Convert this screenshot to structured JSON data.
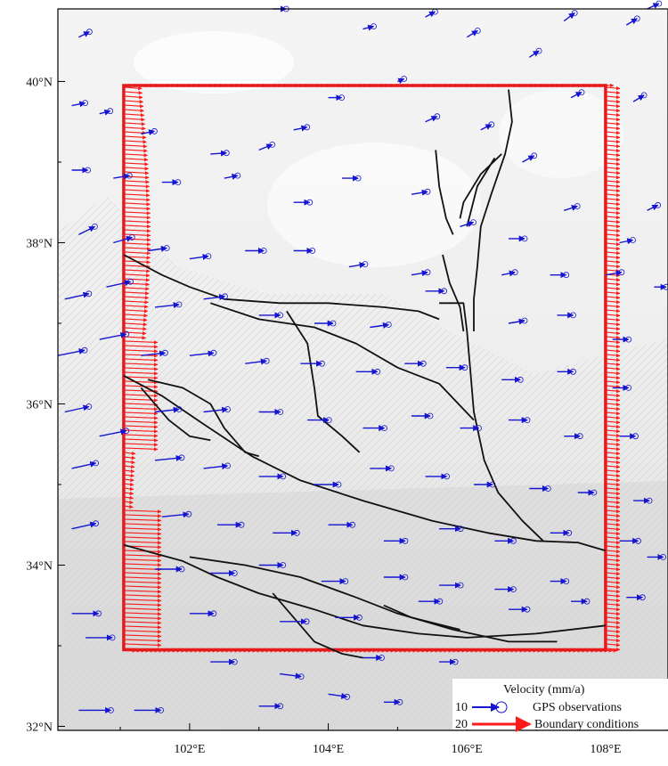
{
  "map": {
    "lon_range": [
      100.1,
      108.9
    ],
    "lat_range": [
      31.95,
      40.9
    ],
    "background": "grayscale shaded relief",
    "latitude_labels": [
      {
        "lat": 40,
        "text": "40°N"
      },
      {
        "lat": 38,
        "text": "38°N"
      },
      {
        "lat": 36,
        "text": "36°N"
      },
      {
        "lat": 34,
        "text": "34°N"
      },
      {
        "lat": 32,
        "text": "32°N"
      }
    ],
    "longitude_labels": [
      {
        "lon": 102,
        "text": "102°E"
      },
      {
        "lon": 104,
        "text": "104°E"
      },
      {
        "lon": 106,
        "text": "106°E"
      },
      {
        "lon": 108,
        "text": "108°E"
      }
    ]
  },
  "model_boundary": {
    "color": "#e41a1c",
    "corners": [
      [
        101.05,
        39.95
      ],
      [
        108.0,
        39.95
      ],
      [
        108.0,
        32.95
      ],
      [
        101.05,
        32.95
      ]
    ]
  },
  "legend": {
    "title": "Velocity (mm/a)",
    "gps_value": "10",
    "gps_label": "GPS observations",
    "gps_color": "#1414d2",
    "boundary_value": "20",
    "boundary_label": "Boundary conditions",
    "boundary_color": "#ff1a1a"
  },
  "faults": [
    [
      [
        101.05,
        37.85
      ],
      [
        101.6,
        37.6
      ],
      [
        102.0,
        37.45
      ],
      [
        102.5,
        37.3
      ],
      [
        103.3,
        37.25
      ],
      [
        104.0,
        37.25
      ],
      [
        104.8,
        37.2
      ],
      [
        105.3,
        37.15
      ],
      [
        105.6,
        37.05
      ]
    ],
    [
      [
        102.3,
        37.25
      ],
      [
        103.0,
        37.05
      ],
      [
        103.8,
        36.95
      ],
      [
        104.4,
        36.75
      ],
      [
        105.0,
        36.45
      ],
      [
        105.6,
        36.25
      ],
      [
        106.1,
        35.8
      ]
    ],
    [
      [
        103.4,
        37.15
      ],
      [
        103.7,
        36.75
      ],
      [
        103.8,
        36.2
      ],
      [
        103.85,
        35.85
      ],
      [
        104.2,
        35.6
      ],
      [
        104.45,
        35.4
      ]
    ],
    [
      [
        101.05,
        36.35
      ],
      [
        101.6,
        36.1
      ],
      [
        102.2,
        35.75
      ],
      [
        102.9,
        35.35
      ],
      [
        103.6,
        35.05
      ],
      [
        104.5,
        34.8
      ],
      [
        105.5,
        34.55
      ],
      [
        106.3,
        34.4
      ],
      [
        107.0,
        34.3
      ],
      [
        107.6,
        34.28
      ],
      [
        108.0,
        34.18
      ]
    ],
    [
      [
        101.4,
        36.3
      ],
      [
        101.9,
        36.2
      ],
      [
        102.3,
        36.0
      ],
      [
        102.5,
        35.7
      ],
      [
        102.8,
        35.4
      ],
      [
        103.0,
        35.35
      ]
    ],
    [
      [
        101.3,
        36.2
      ],
      [
        101.7,
        35.8
      ],
      [
        102.0,
        35.6
      ],
      [
        102.3,
        35.55
      ]
    ],
    [
      [
        105.6,
        37.25
      ],
      [
        105.95,
        37.25
      ],
      [
        106.0,
        36.9
      ],
      [
        106.05,
        36.4
      ],
      [
        106.1,
        35.9
      ],
      [
        106.25,
        35.3
      ],
      [
        106.45,
        34.9
      ],
      [
        106.8,
        34.55
      ],
      [
        107.1,
        34.3
      ]
    ],
    [
      [
        106.6,
        39.9
      ],
      [
        106.65,
        39.5
      ],
      [
        106.55,
        39.1
      ],
      [
        106.35,
        38.6
      ],
      [
        106.2,
        38.2
      ],
      [
        106.15,
        37.7
      ],
      [
        106.1,
        37.3
      ],
      [
        106.1,
        36.9
      ]
    ],
    [
      [
        106.5,
        39.1
      ],
      [
        106.2,
        38.85
      ],
      [
        105.95,
        38.5
      ],
      [
        105.9,
        38.3
      ]
    ],
    [
      [
        106.4,
        39.05
      ],
      [
        106.15,
        38.7
      ],
      [
        106.0,
        38.2
      ]
    ],
    [
      [
        105.55,
        39.15
      ],
      [
        105.6,
        38.7
      ],
      [
        105.7,
        38.3
      ],
      [
        105.8,
        38.1
      ]
    ],
    [
      [
        105.65,
        37.85
      ],
      [
        105.75,
        37.5
      ],
      [
        105.9,
        37.2
      ],
      [
        105.95,
        36.9
      ]
    ],
    [
      [
        101.05,
        34.25
      ],
      [
        101.9,
        34.05
      ],
      [
        102.4,
        33.85
      ],
      [
        103.0,
        33.65
      ],
      [
        103.8,
        33.45
      ],
      [
        104.5,
        33.25
      ],
      [
        105.3,
        33.15
      ],
      [
        106.0,
        33.1
      ],
      [
        107.0,
        33.15
      ],
      [
        108.0,
        33.25
      ]
    ],
    [
      [
        102.0,
        34.1
      ],
      [
        102.8,
        34.0
      ],
      [
        103.6,
        33.85
      ],
      [
        104.4,
        33.6
      ],
      [
        105.0,
        33.4
      ],
      [
        105.8,
        33.2
      ],
      [
        106.6,
        33.05
      ],
      [
        107.3,
        33.05
      ]
    ],
    [
      [
        103.2,
        33.65
      ],
      [
        103.5,
        33.35
      ],
      [
        103.8,
        33.05
      ],
      [
        104.2,
        32.9
      ],
      [
        104.5,
        32.85
      ]
    ],
    [
      [
        104.8,
        33.5
      ],
      [
        105.2,
        33.35
      ],
      [
        105.9,
        33.2
      ]
    ]
  ],
  "gps_vectors": [
    [
      100.4,
      40.55,
      0.2,
      0.1
    ],
    [
      101.2,
      40.95,
      0.25,
      0.05
    ],
    [
      103.2,
      40.9,
      0.25,
      0.0
    ],
    [
      104.5,
      40.65,
      0.2,
      0.05
    ],
    [
      105.4,
      40.8,
      0.18,
      0.1
    ],
    [
      106.0,
      40.55,
      0.2,
      0.12
    ],
    [
      106.9,
      40.3,
      0.18,
      0.12
    ],
    [
      107.4,
      40.75,
      0.2,
      0.15
    ],
    [
      108.3,
      40.7,
      0.2,
      0.12
    ],
    [
      108.6,
      40.9,
      0.22,
      0.1
    ],
    [
      105.0,
      40.0,
      0.12,
      0.05
    ],
    [
      100.3,
      39.7,
      0.25,
      0.05
    ],
    [
      100.7,
      39.6,
      0.2,
      0.05
    ],
    [
      101.3,
      39.35,
      0.25,
      0.05
    ],
    [
      102.3,
      39.1,
      0.3,
      0.02
    ],
    [
      103.0,
      39.15,
      0.25,
      0.1
    ],
    [
      103.5,
      39.4,
      0.25,
      0.05
    ],
    [
      104.0,
      39.8,
      0.25,
      0.0
    ],
    [
      105.4,
      39.5,
      0.22,
      0.1
    ],
    [
      106.2,
      39.4,
      0.2,
      0.1
    ],
    [
      106.8,
      39.0,
      0.22,
      0.12
    ],
    [
      107.5,
      39.8,
      0.2,
      0.1
    ],
    [
      108.4,
      39.75,
      0.2,
      0.12
    ],
    [
      108.6,
      38.4,
      0.2,
      0.1
    ],
    [
      100.3,
      38.9,
      0.3,
      0.0
    ],
    [
      100.9,
      38.8,
      0.3,
      0.05
    ],
    [
      101.6,
      38.75,
      0.3,
      0.0
    ],
    [
      102.5,
      38.8,
      0.25,
      0.05
    ],
    [
      103.5,
      38.5,
      0.3,
      0.0
    ],
    [
      104.2,
      38.8,
      0.3,
      0.0
    ],
    [
      105.2,
      38.6,
      0.3,
      0.05
    ],
    [
      105.9,
      38.2,
      0.25,
      0.08
    ],
    [
      106.6,
      38.05,
      0.3,
      0.0
    ],
    [
      107.4,
      38.4,
      0.25,
      0.08
    ],
    [
      108.2,
      38.0,
      0.25,
      0.05
    ],
    [
      100.4,
      38.1,
      0.3,
      0.15
    ],
    [
      100.9,
      38.0,
      0.35,
      0.1
    ],
    [
      101.4,
      37.9,
      0.35,
      0.05
    ],
    [
      102.0,
      37.8,
      0.35,
      0.05
    ],
    [
      102.8,
      37.9,
      0.35,
      0.0
    ],
    [
      103.5,
      37.9,
      0.35,
      0.0
    ],
    [
      104.3,
      37.7,
      0.3,
      0.05
    ],
    [
      105.2,
      37.6,
      0.3,
      0.05
    ],
    [
      106.5,
      37.6,
      0.25,
      0.05
    ],
    [
      107.2,
      37.6,
      0.3,
      0.0
    ],
    [
      108.0,
      37.6,
      0.3,
      0.05
    ],
    [
      108.7,
      37.45,
      0.3,
      0.0
    ],
    [
      100.2,
      37.3,
      0.45,
      0.1
    ],
    [
      100.8,
      37.45,
      0.45,
      0.1
    ],
    [
      101.5,
      37.2,
      0.45,
      0.05
    ],
    [
      102.2,
      37.3,
      0.4,
      0.05
    ],
    [
      103.0,
      37.1,
      0.4,
      0.0
    ],
    [
      103.8,
      37.0,
      0.35,
      0.0
    ],
    [
      104.6,
      36.95,
      0.35,
      0.05
    ],
    [
      105.4,
      37.4,
      0.35,
      0.0
    ],
    [
      106.6,
      37.0,
      0.3,
      0.05
    ],
    [
      107.3,
      37.1,
      0.3,
      0.0
    ],
    [
      108.1,
      36.8,
      0.3,
      0.0
    ],
    [
      100.1,
      36.6,
      0.5,
      0.1
    ],
    [
      100.7,
      36.8,
      0.5,
      0.1
    ],
    [
      101.3,
      36.6,
      0.45,
      0.05
    ],
    [
      102.0,
      36.6,
      0.45,
      0.05
    ],
    [
      102.8,
      36.5,
      0.4,
      0.05
    ],
    [
      103.6,
      36.5,
      0.4,
      0.0
    ],
    [
      104.4,
      36.4,
      0.4,
      0.0
    ],
    [
      105.1,
      36.5,
      0.35,
      0.0
    ],
    [
      105.7,
      36.45,
      0.35,
      0.0
    ],
    [
      106.5,
      36.3,
      0.35,
      0.0
    ],
    [
      107.3,
      36.4,
      0.3,
      0.0
    ],
    [
      108.1,
      36.2,
      0.3,
      0.0
    ],
    [
      100.2,
      35.9,
      0.45,
      0.1
    ],
    [
      100.7,
      35.6,
      0.5,
      0.1
    ],
    [
      101.5,
      35.9,
      0.45,
      0.05
    ],
    [
      102.2,
      35.9,
      0.45,
      0.05
    ],
    [
      103.0,
      35.9,
      0.4,
      0.0
    ],
    [
      103.7,
      35.8,
      0.4,
      0.0
    ],
    [
      104.5,
      35.7,
      0.4,
      0.0
    ],
    [
      105.2,
      35.85,
      0.35,
      0.0
    ],
    [
      105.9,
      35.7,
      0.35,
      0.0
    ],
    [
      106.6,
      35.8,
      0.35,
      0.0
    ],
    [
      107.4,
      35.6,
      0.3,
      0.0
    ],
    [
      108.2,
      35.6,
      0.3,
      0.0
    ],
    [
      100.3,
      35.2,
      0.45,
      0.1
    ],
    [
      101.5,
      35.3,
      0.5,
      0.05
    ],
    [
      102.2,
      35.2,
      0.45,
      0.05
    ],
    [
      103.0,
      35.1,
      0.45,
      0.0
    ],
    [
      103.8,
      35.0,
      0.45,
      0.0
    ],
    [
      104.6,
      35.2,
      0.4,
      0.0
    ],
    [
      105.4,
      35.1,
      0.4,
      0.0
    ],
    [
      106.1,
      35.0,
      0.35,
      0.0
    ],
    [
      106.9,
      34.95,
      0.35,
      0.0
    ],
    [
      107.6,
      34.9,
      0.3,
      0.0
    ],
    [
      108.4,
      34.8,
      0.3,
      0.0
    ],
    [
      100.3,
      34.45,
      0.45,
      0.1
    ],
    [
      101.6,
      34.6,
      0.5,
      0.05
    ],
    [
      102.4,
      34.5,
      0.45,
      0.0
    ],
    [
      103.2,
      34.4,
      0.45,
      0.0
    ],
    [
      104.0,
      34.5,
      0.45,
      0.0
    ],
    [
      104.8,
      34.3,
      0.4,
      0.0
    ],
    [
      105.6,
      34.45,
      0.4,
      0.0
    ],
    [
      106.4,
      34.3,
      0.35,
      0.0
    ],
    [
      107.2,
      34.4,
      0.35,
      0.0
    ],
    [
      108.2,
      34.3,
      0.35,
      0.0
    ],
    [
      108.6,
      34.1,
      0.3,
      0.0
    ],
    [
      101.5,
      33.95,
      0.5,
      0.0
    ],
    [
      102.3,
      33.9,
      0.45,
      0.0
    ],
    [
      103.0,
      34.0,
      0.45,
      0.0
    ],
    [
      103.9,
      33.8,
      0.45,
      0.0
    ],
    [
      104.8,
      33.85,
      0.4,
      0.0
    ],
    [
      105.6,
      33.75,
      0.4,
      0.0
    ],
    [
      106.4,
      33.7,
      0.35,
      0.0
    ],
    [
      107.2,
      33.8,
      0.3,
      0.0
    ],
    [
      108.3,
      33.6,
      0.3,
      0.0
    ],
    [
      100.3,
      33.4,
      0.5,
      0.0
    ],
    [
      102.0,
      33.4,
      0.45,
      0.0
    ],
    [
      103.3,
      33.3,
      0.5,
      0.0
    ],
    [
      104.1,
      33.35,
      0.45,
      0.0
    ],
    [
      105.3,
      33.55,
      0.4,
      0.0
    ],
    [
      106.6,
      33.45,
      0.35,
      0.0
    ],
    [
      107.5,
      33.55,
      0.3,
      0.0
    ],
    [
      100.5,
      33.1,
      0.5,
      0.0
    ],
    [
      102.3,
      32.8,
      0.45,
      0.0
    ],
    [
      103.3,
      32.65,
      0.4,
      -0.05
    ],
    [
      104.5,
      32.85,
      0.35,
      0.0
    ],
    [
      105.6,
      32.8,
      0.3,
      0.0
    ],
    [
      103.0,
      32.25,
      0.4,
      0.0
    ],
    [
      104.0,
      32.4,
      0.35,
      -0.05
    ],
    [
      104.8,
      32.3,
      0.3,
      0.0
    ],
    [
      100.4,
      32.2,
      0.6,
      0.0
    ],
    [
      101.2,
      32.2,
      0.5,
      0.0
    ]
  ]
}
